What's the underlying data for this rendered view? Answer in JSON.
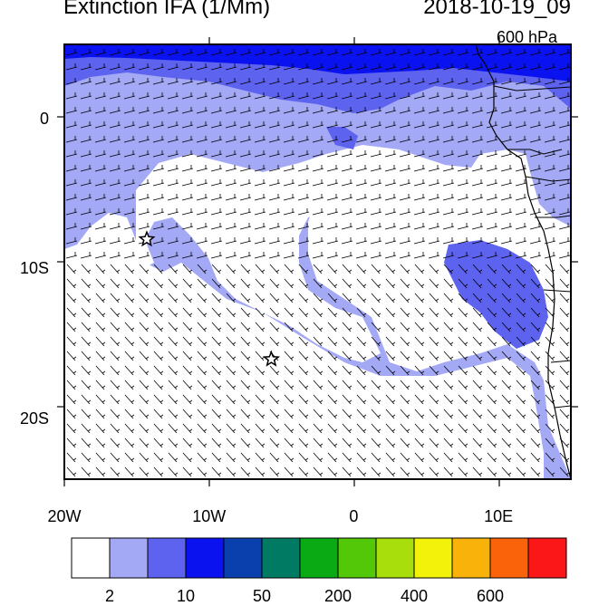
{
  "title": "Extinction IFA (1/Mm)",
  "datetime": "2018-10-19_09",
  "level": "600 hPa",
  "map": {
    "lon_range": [
      -20,
      15
    ],
    "lat_range": [
      -24,
      5
    ],
    "lat_ticks": [
      {
        "value": 0,
        "label": "0"
      },
      {
        "value": -10,
        "label": "10S"
      },
      {
        "value": -20,
        "label": "20S"
      }
    ],
    "lon_ticks": [
      {
        "value": -20,
        "label": "20W"
      },
      {
        "value": -10,
        "label": "10W"
      },
      {
        "value": 0,
        "label": "0"
      },
      {
        "value": 10,
        "label": "10E"
      }
    ],
    "markers": [
      {
        "name": "star",
        "lon": -14.3,
        "lat": -8.0
      },
      {
        "name": "star",
        "lon": -5.7,
        "lat": -16.0
      }
    ]
  },
  "colorbar": {
    "colors": [
      "#ffffff",
      "#a4a9f6",
      "#5d62ef",
      "#0a13ef",
      "#0a3fae",
      "#007a63",
      "#0aaa14",
      "#52c808",
      "#a8de0c",
      "#f2f20a",
      "#f8b20a",
      "#fb630a",
      "#fb1717"
    ],
    "labels": [
      {
        "after_box": 1,
        "text": "2"
      },
      {
        "after_box": 3,
        "text": "10"
      },
      {
        "after_box": 5,
        "text": "50"
      },
      {
        "after_box": 7,
        "text": "200"
      },
      {
        "after_box": 9,
        "text": "400"
      },
      {
        "after_box": 11,
        "text": "600"
      }
    ]
  }
}
